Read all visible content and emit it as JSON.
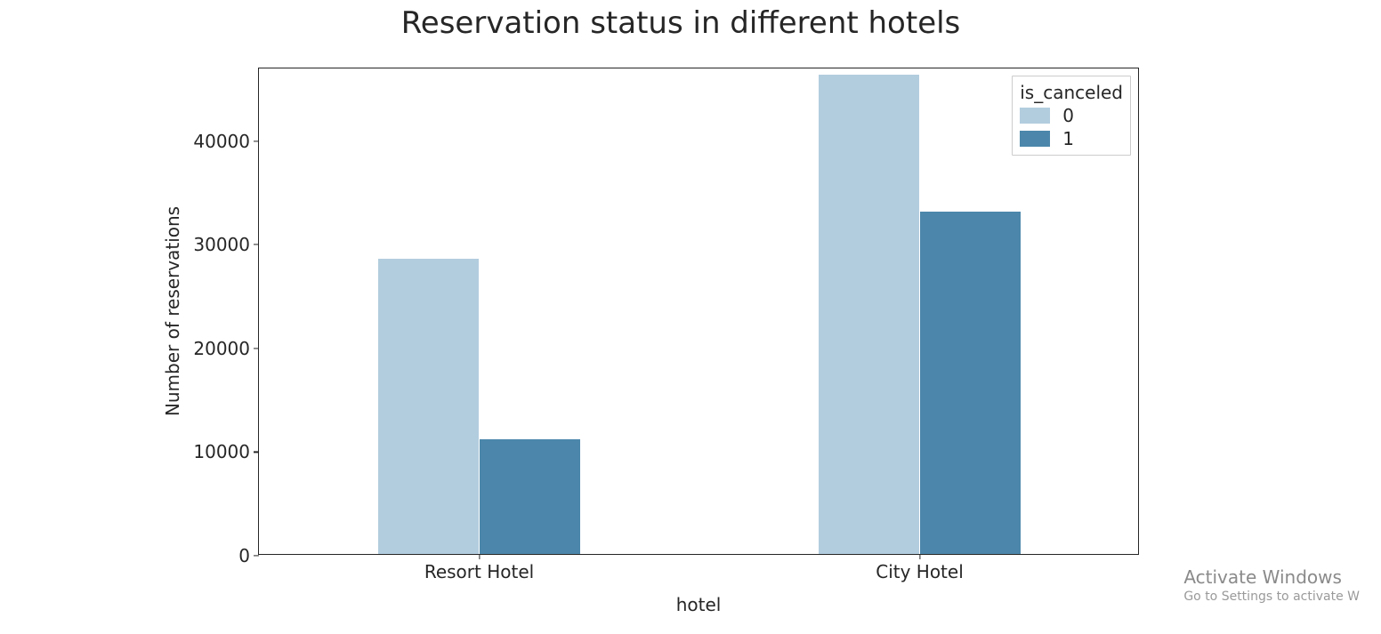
{
  "chart": {
    "type": "bar",
    "title": "Reservation status in different hotels",
    "title_fontsize": 34,
    "title_color": "#262626",
    "background_color": "#ffffff",
    "plot_border_color": "#262626",
    "categories": [
      "Resort Hotel",
      "City Hotel"
    ],
    "series": [
      {
        "name": "0",
        "color": "#b2cdde",
        "values": [
          28500,
          46200
        ]
      },
      {
        "name": "1",
        "color": "#4c87ab",
        "values": [
          11100,
          33000
        ]
      }
    ],
    "xlabel": "hotel",
    "ylabel": "Number of reservations",
    "label_fontsize": 20,
    "tick_fontsize": 20,
    "ylim": [
      0,
      47000
    ],
    "yticks": [
      0,
      10000,
      20000,
      30000,
      40000
    ],
    "bar_group_width": 0.46,
    "bar_gap": 0.0,
    "legend": {
      "title": "is_canceled",
      "title_fontsize": 20,
      "label_fontsize": 20,
      "position": "top-right",
      "border_color": "#cccccc",
      "background_color": "#ffffff"
    }
  },
  "watermark": {
    "line1": "Activate Windows",
    "line2": "Go to Settings to activate W"
  }
}
